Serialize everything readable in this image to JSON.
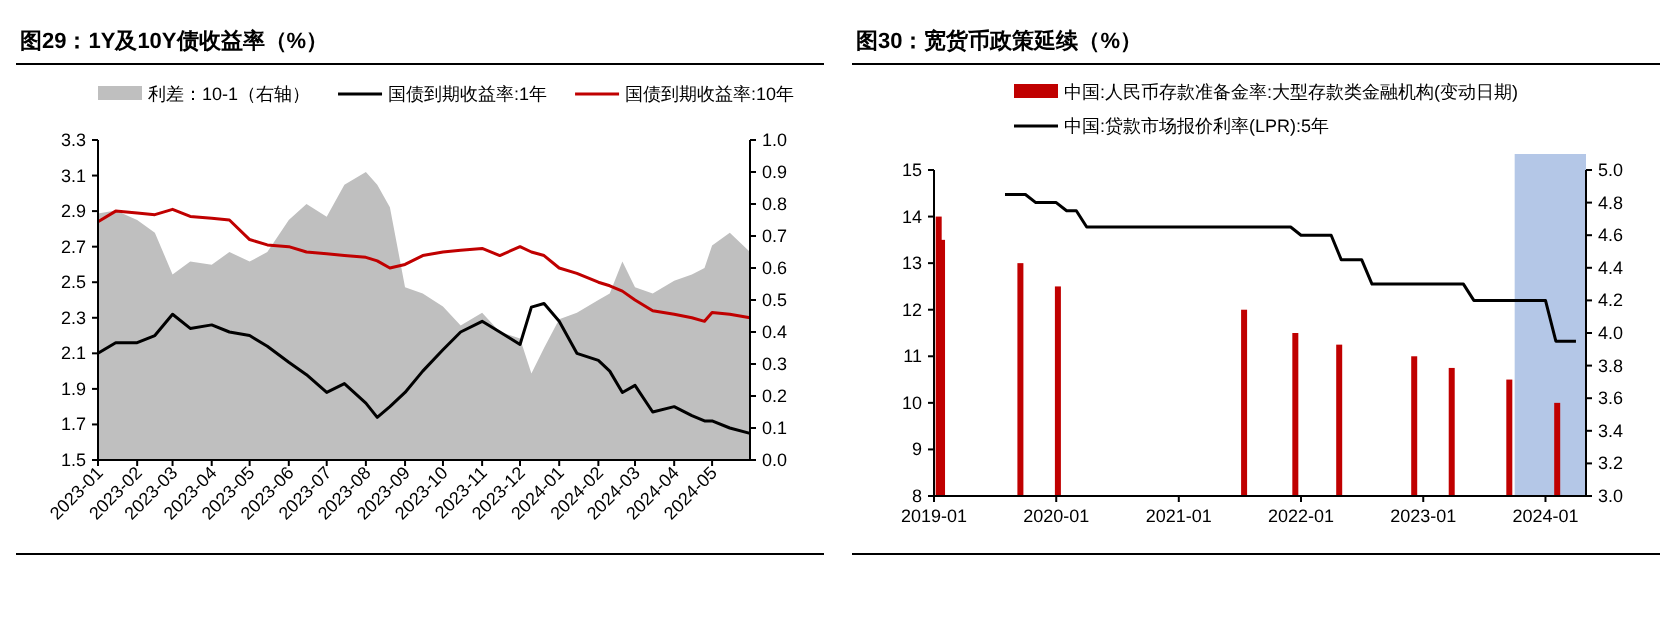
{
  "chart_data": [
    {
      "type": "line",
      "title": "图29：1Y及10Y债收益率（%）",
      "legend": "top",
      "grid": false,
      "x": [
        "2023-01-01",
        "2023-01-15",
        "2023-02-01",
        "2023-02-15",
        "2023-03-01",
        "2023-03-15",
        "2023-04-01",
        "2023-04-15",
        "2023-05-01",
        "2023-05-15",
        "2023-06-01",
        "2023-06-15",
        "2023-07-01",
        "2023-07-15",
        "2023-08-01",
        "2023-08-10",
        "2023-08-20",
        "2023-09-01",
        "2023-09-15",
        "2023-10-01",
        "2023-10-15",
        "2023-11-01",
        "2023-11-15",
        "2023-12-01",
        "2023-12-10",
        "2023-12-20",
        "2024-01-01",
        "2024-01-15",
        "2024-02-01",
        "2024-02-10",
        "2024-02-20",
        "2024-03-01",
        "2024-03-15",
        "2024-04-01",
        "2024-04-15",
        "2024-04-25",
        "2024-05-01",
        "2024-05-15",
        "2024-05-31"
      ],
      "series": [
        {
          "name": "利差：10-1（右轴）",
          "type": "area",
          "axis": "y2",
          "color": "#bfbfbf",
          "values": [
            0.77,
            0.78,
            0.75,
            0.71,
            0.58,
            0.62,
            0.61,
            0.65,
            0.62,
            0.65,
            0.75,
            0.8,
            0.76,
            0.86,
            0.9,
            0.86,
            0.79,
            0.54,
            0.52,
            0.48,
            0.42,
            0.46,
            0.4,
            0.38,
            0.27,
            0.35,
            0.44,
            0.46,
            0.5,
            0.52,
            0.62,
            0.54,
            0.52,
            0.56,
            0.58,
            0.6,
            0.67,
            0.71,
            0.65
          ]
        },
        {
          "name": "国债到期收益率:1年",
          "color": "#000000",
          "values": [
            2.1,
            2.16,
            2.16,
            2.2,
            2.32,
            2.24,
            2.26,
            2.22,
            2.2,
            2.14,
            2.05,
            1.98,
            1.88,
            1.93,
            1.82,
            1.74,
            1.8,
            1.88,
            2.0,
            2.12,
            2.22,
            2.28,
            2.22,
            2.15,
            2.36,
            2.38,
            2.28,
            2.1,
            2.06,
            2.0,
            1.88,
            1.92,
            1.77,
            1.8,
            1.75,
            1.72,
            1.72,
            1.68,
            1.65
          ]
        },
        {
          "name": "国债到期收益率:10年",
          "color": "#c00000",
          "values": [
            2.84,
            2.9,
            2.89,
            2.88,
            2.91,
            2.87,
            2.86,
            2.85,
            2.74,
            2.71,
            2.7,
            2.67,
            2.66,
            2.65,
            2.64,
            2.62,
            2.58,
            2.6,
            2.65,
            2.67,
            2.68,
            2.69,
            2.65,
            2.7,
            2.67,
            2.65,
            2.58,
            2.55,
            2.5,
            2.48,
            2.45,
            2.4,
            2.34,
            2.32,
            2.3,
            2.28,
            2.33,
            2.32,
            2.3
          ]
        }
      ],
      "xlim": [
        "2023-01-01",
        "2024-05-31"
      ],
      "xticks": [
        "2023-01",
        "2023-02",
        "2023-03",
        "2023-04",
        "2023-05",
        "2023-06",
        "2023-07",
        "2023-08",
        "2023-09",
        "2023-10",
        "2023-11",
        "2023-12",
        "2024-01",
        "2024-02",
        "2024-03",
        "2024-04",
        "2024-05"
      ],
      "ylim": [
        1.5,
        3.3
      ],
      "yticks": [
        1.5,
        1.7,
        1.9,
        2.1,
        2.3,
        2.5,
        2.7,
        2.9,
        3.1,
        3.3
      ],
      "y2lim": [
        0,
        1
      ],
      "y2ticks": [
        {
          "value": 0,
          "label": "0.0"
        },
        0.1,
        0.2,
        0.3,
        0.4,
        0.5,
        0.6,
        0.7,
        0.8,
        0.9,
        {
          "value": 1,
          "label": "1.0"
        }
      ]
    },
    {
      "type": "bar",
      "title": "图30：宽货币政策延续（%）",
      "legend": "top",
      "grid": false,
      "series": [
        {
          "name": "中国:人民币存款准备金率:大型存款类金融机构(变动日期)",
          "color": "#c00000",
          "x": [
            "2019-01-15",
            "2019-01-25",
            "2019-09-16",
            "2020-01-06",
            "2021-07-15",
            "2021-12-15",
            "2022-04-25",
            "2022-12-05",
            "2023-03-27",
            "2023-09-15",
            "2024-02-05"
          ],
          "values": [
            14,
            13.5,
            13,
            12.5,
            12,
            11.5,
            11.25,
            11,
            10.75,
            10.5,
            10
          ]
        },
        {
          "name": "中国:贷款市场报价利率(LPR):5年",
          "type": "line",
          "axis": "y2",
          "color": "#000000",
          "x": [
            "2019-08",
            "2019-10",
            "2019-11",
            "2020-01",
            "2020-02",
            "2020-03",
            "2020-04",
            "2021-12",
            "2022-01",
            "2022-04",
            "2022-05",
            "2022-07",
            "2022-08",
            "2023-05",
            "2023-06",
            "2024-01",
            "2024-02",
            "2024-04"
          ],
          "values": [
            4.85,
            4.85,
            4.8,
            4.8,
            4.75,
            4.75,
            4.65,
            4.65,
            4.6,
            4.6,
            4.45,
            4.45,
            4.3,
            4.3,
            4.2,
            4.2,
            3.95,
            3.95
          ]
        }
      ],
      "bands": [
        {
          "axis": "x",
          "from": "2023-10-01",
          "to": "2024-05-01",
          "color": "#b4c7e7"
        }
      ],
      "xlim": [
        "2019-01-01",
        "2024-05-01"
      ],
      "xticks": [
        "2019-01",
        "2020-01",
        "2021-01",
        "2022-01",
        "2023-01",
        "2024-01"
      ],
      "ylim": [
        8,
        15
      ],
      "yticks": [
        8,
        9,
        10,
        11,
        12,
        13,
        14,
        15
      ],
      "y2lim": [
        3,
        5
      ],
      "y2ticks": [
        {
          "value": 3,
          "label": "3.0"
        },
        3.2,
        3.4,
        3.6,
        3.8,
        {
          "value": 4,
          "label": "4.0"
        },
        4.2,
        4.4,
        4.6,
        4.8,
        {
          "value": 5,
          "label": "5.0"
        }
      ]
    }
  ]
}
